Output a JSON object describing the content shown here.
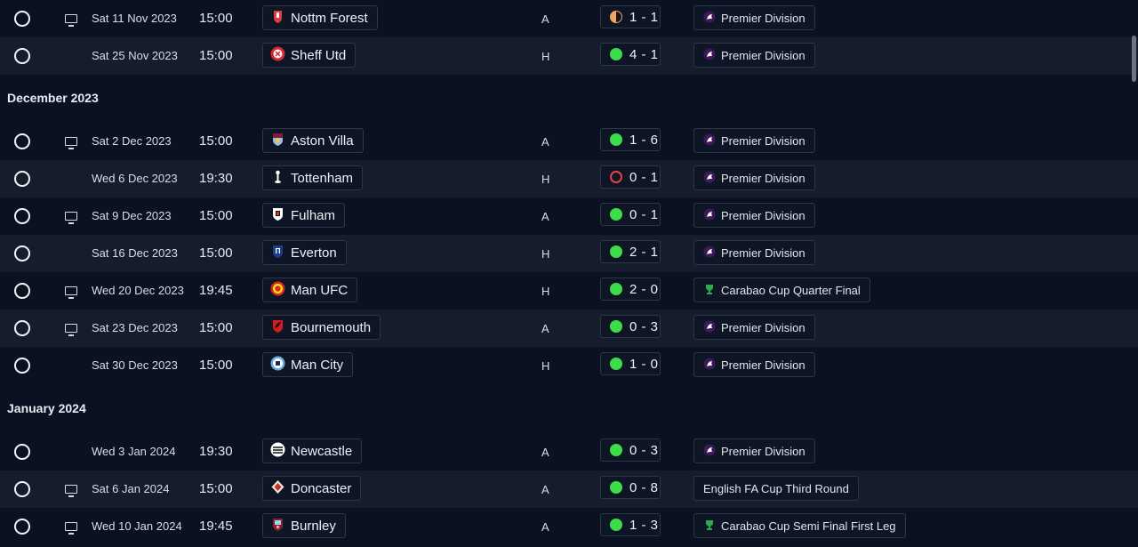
{
  "sections": [
    {
      "label": "December 2023"
    },
    {
      "label": "January 2024"
    }
  ],
  "fixtures": [
    {
      "date": "Sat 11 Nov 2023",
      "time": "15:00",
      "tv": true,
      "team": "Nottm Forest",
      "crest": "nottm-forest",
      "venue": "A",
      "result": "draw",
      "score": "1 - 1",
      "competition": "Premier Division",
      "comp_icon": "premier-league"
    },
    {
      "date": "Sat 25 Nov 2023",
      "time": "15:00",
      "tv": false,
      "team": "Sheff Utd",
      "crest": "sheff-utd",
      "venue": "H",
      "result": "win",
      "score": "4 - 1",
      "competition": "Premier Division",
      "comp_icon": "premier-league"
    },
    {
      "date": "Sat 2 Dec 2023",
      "time": "15:00",
      "tv": true,
      "team": "Aston Villa",
      "crest": "aston-villa",
      "venue": "A",
      "result": "win",
      "score": "1 - 6",
      "competition": "Premier Division",
      "comp_icon": "premier-league"
    },
    {
      "date": "Wed 6 Dec 2023",
      "time": "19:30",
      "tv": false,
      "team": "Tottenham",
      "crest": "tottenham",
      "venue": "H",
      "result": "loss",
      "score": "0 - 1",
      "competition": "Premier Division",
      "comp_icon": "premier-league"
    },
    {
      "date": "Sat 9 Dec 2023",
      "time": "15:00",
      "tv": true,
      "team": "Fulham",
      "crest": "fulham",
      "venue": "A",
      "result": "win",
      "score": "0 - 1",
      "competition": "Premier Division",
      "comp_icon": "premier-league"
    },
    {
      "date": "Sat 16 Dec 2023",
      "time": "15:00",
      "tv": false,
      "team": "Everton",
      "crest": "everton",
      "venue": "H",
      "result": "win",
      "score": "2 - 1",
      "competition": "Premier Division",
      "comp_icon": "premier-league"
    },
    {
      "date": "Wed 20 Dec 2023",
      "time": "19:45",
      "tv": true,
      "team": "Man UFC",
      "crest": "man-ufc",
      "venue": "H",
      "result": "win",
      "score": "2 - 0",
      "competition": "Carabao Cup Quarter Final",
      "comp_icon": "carabao-cup"
    },
    {
      "date": "Sat 23 Dec 2023",
      "time": "15:00",
      "tv": true,
      "team": "Bournemouth",
      "crest": "bournemouth",
      "venue": "A",
      "result": "win",
      "score": "0 - 3",
      "competition": "Premier Division",
      "comp_icon": "premier-league"
    },
    {
      "date": "Sat 30 Dec 2023",
      "time": "15:00",
      "tv": false,
      "team": "Man City",
      "crest": "man-city",
      "venue": "H",
      "result": "win",
      "score": "1 - 0",
      "competition": "Premier Division",
      "comp_icon": "premier-league"
    },
    {
      "date": "Wed 3 Jan 2024",
      "time": "19:30",
      "tv": false,
      "team": "Newcastle",
      "crest": "newcastle",
      "venue": "A",
      "result": "win",
      "score": "0 - 3",
      "competition": "Premier Division",
      "comp_icon": "premier-league"
    },
    {
      "date": "Sat 6 Jan 2024",
      "time": "15:00",
      "tv": true,
      "team": "Doncaster",
      "crest": "doncaster",
      "venue": "A",
      "result": "win",
      "score": "0 - 8",
      "competition": "English FA Cup Third Round",
      "comp_icon": ""
    },
    {
      "date": "Wed 10 Jan 2024",
      "time": "19:45",
      "tv": true,
      "team": "Burnley",
      "crest": "burnley",
      "venue": "A",
      "result": "win",
      "score": "1 - 3",
      "competition": "Carabao Cup Semi Final First Leg",
      "comp_icon": "carabao-cup"
    }
  ],
  "colors": {
    "background": "#0b1120",
    "row_alt": "#151d2c",
    "win": "#3ddc4a",
    "loss": "#e2434b",
    "draw": "#f5a25a"
  }
}
